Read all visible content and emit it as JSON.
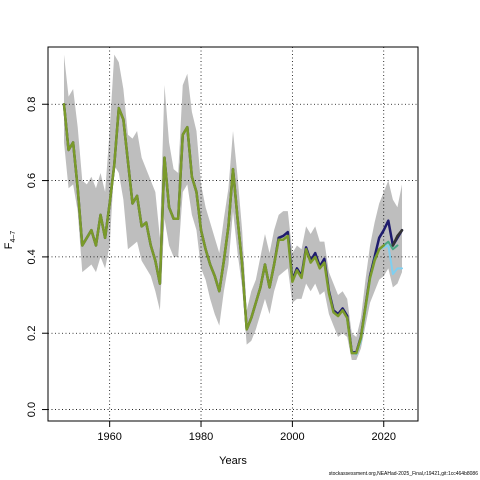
{
  "chart_data": {
    "type": "line",
    "xlabel": "Years",
    "ylabel_main": "F",
    "ylabel_sub": "4–7",
    "xlim": [
      1946.5,
      2027.5
    ],
    "ylim": [
      -0.03,
      0.95
    ],
    "xticks": [
      1960,
      1980,
      2000,
      2020
    ],
    "yticks": [
      0.0,
      0.2,
      0.4,
      0.6,
      0.8
    ],
    "ytick_labels": [
      "0.0",
      "0.2",
      "0.4",
      "0.6",
      "0.8"
    ],
    "grid": true,
    "band": {
      "x": [
        1950,
        1951,
        1952,
        1953,
        1954,
        1955,
        1956,
        1957,
        1958,
        1959,
        1960,
        1961,
        1962,
        1963,
        1964,
        1965,
        1966,
        1967,
        1968,
        1969,
        1970,
        1971,
        1972,
        1973,
        1974,
        1975,
        1976,
        1977,
        1978,
        1979,
        1980,
        1981,
        1982,
        1983,
        1984,
        1985,
        1986,
        1987,
        1988,
        1989,
        1990,
        1991,
        1992,
        1993,
        1994,
        1995,
        1996,
        1997,
        1998,
        1999,
        2000,
        2001,
        2002,
        2003,
        2004,
        2005,
        2006,
        2007,
        2008,
        2009,
        2010,
        2011,
        2012,
        2013,
        2014,
        2015,
        2016,
        2017,
        2018,
        2019,
        2020,
        2021,
        2022,
        2023,
        2024
      ],
      "upper": [
        0.93,
        0.82,
        0.84,
        0.74,
        0.6,
        0.59,
        0.61,
        0.58,
        0.62,
        0.57,
        0.73,
        0.93,
        0.91,
        0.84,
        0.72,
        0.71,
        0.73,
        0.66,
        0.63,
        0.6,
        0.57,
        0.45,
        0.85,
        0.7,
        0.63,
        0.62,
        0.85,
        0.88,
        0.78,
        0.73,
        0.59,
        0.53,
        0.49,
        0.45,
        0.41,
        0.5,
        0.58,
        0.73,
        0.61,
        0.47,
        0.26,
        0.31,
        0.34,
        0.4,
        0.46,
        0.41,
        0.47,
        0.51,
        0.52,
        0.52,
        0.41,
        0.43,
        0.42,
        0.48,
        0.46,
        0.48,
        0.44,
        0.44,
        0.36,
        0.33,
        0.3,
        0.31,
        0.29,
        0.2,
        0.19,
        0.24,
        0.34,
        0.43,
        0.49,
        0.54,
        0.57,
        0.6,
        0.55,
        0.53,
        0.59
      ],
      "lower": [
        0.7,
        0.58,
        0.59,
        0.52,
        0.36,
        0.37,
        0.38,
        0.36,
        0.4,
        0.37,
        0.43,
        0.64,
        0.62,
        0.55,
        0.42,
        0.43,
        0.44,
        0.39,
        0.37,
        0.35,
        0.31,
        0.26,
        0.5,
        0.43,
        0.4,
        0.4,
        0.57,
        0.59,
        0.51,
        0.47,
        0.37,
        0.34,
        0.29,
        0.25,
        0.22,
        0.31,
        0.38,
        0.52,
        0.41,
        0.32,
        0.17,
        0.18,
        0.21,
        0.25,
        0.29,
        0.25,
        0.31,
        0.35,
        0.36,
        0.37,
        0.28,
        0.29,
        0.29,
        0.33,
        0.31,
        0.33,
        0.3,
        0.31,
        0.25,
        0.22,
        0.19,
        0.2,
        0.19,
        0.13,
        0.13,
        0.16,
        0.22,
        0.28,
        0.31,
        0.34,
        0.35,
        0.37,
        0.32,
        0.33,
        0.36
      ]
    },
    "series": [
      {
        "color": "#1f1c6e",
        "width": 2.5,
        "x": [
          1950,
          1951,
          1952,
          1953,
          1954,
          1955,
          1956,
          1957,
          1958,
          1959,
          1960,
          1961,
          1962,
          1963,
          1964,
          1965,
          1966,
          1967,
          1968,
          1969,
          1970,
          1971,
          1972,
          1973,
          1974,
          1975,
          1976,
          1977,
          1978,
          1979,
          1980,
          1981,
          1982,
          1983,
          1984,
          1985,
          1986,
          1987,
          1988,
          1989,
          1990,
          1991,
          1992,
          1993,
          1994,
          1995,
          1996,
          1997,
          1998,
          1999,
          2000,
          2001,
          2002,
          2003,
          2004,
          2005,
          2006,
          2007,
          2008,
          2009,
          2010,
          2011,
          2012,
          2013,
          2014,
          2015,
          2016,
          2017,
          2018,
          2019,
          2020,
          2021,
          2022,
          2023,
          2024
        ],
        "y": [
          0.8,
          0.68,
          0.7,
          0.58,
          0.43,
          0.45,
          0.47,
          0.43,
          0.51,
          0.45,
          0.54,
          0.64,
          0.79,
          0.76,
          0.65,
          0.54,
          0.56,
          0.48,
          0.49,
          0.43,
          0.39,
          0.33,
          0.66,
          0.53,
          0.5,
          0.5,
          0.72,
          0.74,
          0.61,
          0.57,
          0.47,
          0.42,
          0.38,
          0.35,
          0.31,
          0.39,
          0.48,
          0.63,
          0.5,
          0.38,
          0.21,
          0.24,
          0.28,
          0.32,
          0.38,
          0.32,
          0.38,
          0.45,
          0.455,
          0.465,
          0.34,
          0.37,
          0.35,
          0.425,
          0.39,
          0.41,
          0.375,
          0.395,
          0.31,
          0.26,
          0.25,
          0.265,
          0.245,
          0.15,
          0.15,
          0.19,
          0.27,
          0.35,
          0.4,
          0.45,
          0.47,
          0.495,
          0.43,
          0.45,
          0.47
        ]
      },
      {
        "color": "#7fcff0",
        "width": 2.0,
        "x": [
          2012,
          2013,
          2014,
          2015,
          2016,
          2017,
          2018,
          2019,
          2020,
          2021,
          2022,
          2023,
          2024
        ],
        "y": [
          0.235,
          0.15,
          0.145,
          0.18,
          0.26,
          0.34,
          0.39,
          0.42,
          0.425,
          0.43,
          0.355,
          0.37,
          0.37
        ]
      },
      {
        "color": "#4aa885",
        "width": 2.0,
        "x": [
          2012,
          2013,
          2014,
          2015,
          2016,
          2017,
          2018,
          2019,
          2020,
          2021,
          2022,
          2023
        ],
        "y": [
          0.235,
          0.15,
          0.147,
          0.185,
          0.265,
          0.345,
          0.395,
          0.42,
          0.43,
          0.44,
          0.42,
          0.43
        ]
      },
      {
        "color": "#333333",
        "width": 2.5,
        "x": [
          2022,
          2023,
          2024
        ],
        "y": [
          0.43,
          0.455,
          0.47
        ]
      },
      {
        "color": "#7a9a2a",
        "width": 2.5,
        "x": [
          1950,
          1951,
          1952,
          1953,
          1954,
          1955,
          1956,
          1957,
          1958,
          1959,
          1960,
          1961,
          1962,
          1963,
          1964,
          1965,
          1966,
          1967,
          1968,
          1969,
          1970,
          1971,
          1972,
          1973,
          1974,
          1975,
          1976,
          1977,
          1978,
          1979,
          1980,
          1981,
          1982,
          1983,
          1984,
          1985,
          1986,
          1987,
          1988,
          1989,
          1990,
          1991,
          1992,
          1993,
          1994,
          1995,
          1996,
          1997,
          1998,
          1999,
          2000,
          2001,
          2002,
          2003,
          2004,
          2005,
          2006,
          2007,
          2008,
          2009,
          2010,
          2011,
          2012,
          2013,
          2014,
          2015,
          2016,
          2017,
          2018,
          2019,
          2020
        ],
        "y": [
          0.8,
          0.68,
          0.7,
          0.58,
          0.43,
          0.45,
          0.47,
          0.43,
          0.51,
          0.45,
          0.54,
          0.64,
          0.79,
          0.76,
          0.65,
          0.54,
          0.56,
          0.48,
          0.49,
          0.43,
          0.39,
          0.33,
          0.66,
          0.53,
          0.5,
          0.5,
          0.72,
          0.74,
          0.61,
          0.57,
          0.47,
          0.42,
          0.38,
          0.35,
          0.31,
          0.39,
          0.48,
          0.63,
          0.5,
          0.38,
          0.21,
          0.24,
          0.28,
          0.32,
          0.38,
          0.32,
          0.38,
          0.445,
          0.445,
          0.455,
          0.335,
          0.365,
          0.345,
          0.42,
          0.385,
          0.4,
          0.37,
          0.385,
          0.305,
          0.255,
          0.245,
          0.26,
          0.24,
          0.148,
          0.148,
          0.188,
          0.268,
          0.345,
          0.39,
          0.42,
          0.43
        ]
      }
    ]
  },
  "footer": "stockassessment.org,NEAHad-2025_Final,r19421,git:1cc464b8086"
}
